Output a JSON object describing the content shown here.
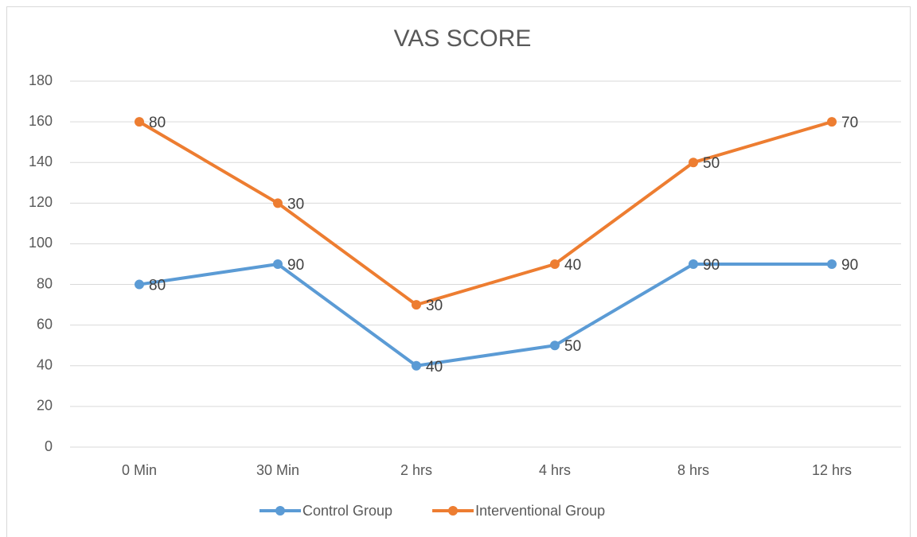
{
  "chart_data": {
    "type": "line",
    "stacked": true,
    "title": "VAS SCORE",
    "categories": [
      "0 Min",
      "30 Min",
      "2 hrs",
      "4 hrs",
      "8 hrs",
      "12 hrs"
    ],
    "series": [
      {
        "name": "Control Group",
        "color": "#5b9bd5",
        "values": [
          80,
          90,
          40,
          50,
          90,
          90
        ]
      },
      {
        "name": "Interventional Group",
        "color": "#ed7d31",
        "values": [
          80,
          30,
          30,
          40,
          50,
          70
        ]
      }
    ],
    "ylim": [
      0,
      180
    ],
    "yticks": [
      0,
      20,
      40,
      60,
      80,
      100,
      120,
      140,
      160,
      180
    ],
    "grid": true,
    "legend": "bottom"
  }
}
